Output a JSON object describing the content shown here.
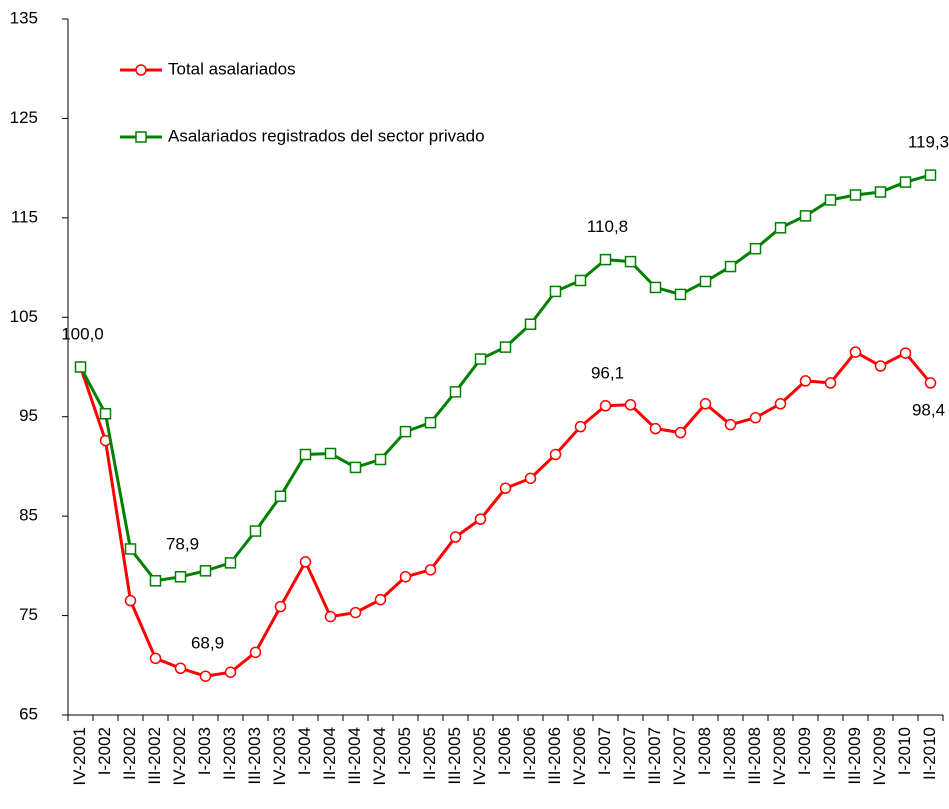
{
  "chart_data": {
    "type": "line",
    "categories": [
      "IV-2001",
      "I-2002",
      "II-2002",
      "III-2002",
      "IV-2002",
      "I-2003",
      "II-2003",
      "III-2003",
      "IV-2003",
      "I-2004",
      "II-2004",
      "III-2004",
      "IV-2004",
      "I-2005",
      "II-2005",
      "III-2005",
      "IV-2005",
      "I-2006",
      "II-2006",
      "III-2006",
      "IV-2006",
      "I-2007",
      "II-2007",
      "III-2007",
      "IV-2007",
      "I-2008",
      "II-2008",
      "III-2008",
      "IV-2008",
      "I-2009",
      "II-2009",
      "III-2009",
      "IV-2009",
      "I-2010",
      "II-2010"
    ],
    "series": [
      {
        "name": "Total asalariados",
        "color": "#ff0000",
        "values": [
          100,
          92.6,
          76.5,
          70.7,
          69.7,
          68.9,
          69.3,
          71.3,
          75.9,
          80.4,
          74.9,
          75.3,
          76.6,
          78.9,
          79.6,
          82.9,
          84.7,
          87.8,
          88.8,
          91.2,
          94.0,
          96.1,
          96.2,
          93.8,
          93.4,
          96.3,
          94.2,
          94.9,
          96.3,
          98.6,
          98.4,
          101.5,
          100.1,
          101.4,
          98.4
        ],
        "value_labels": [
          null,
          null,
          null,
          null,
          null,
          "68,9",
          null,
          null,
          null,
          null,
          null,
          null,
          null,
          null,
          null,
          null,
          null,
          null,
          null,
          null,
          null,
          "96,1",
          null,
          null,
          null,
          null,
          null,
          null,
          null,
          null,
          null,
          null,
          null,
          null,
          "98,4"
        ]
      },
      {
        "name": "Asalariados registrados del sector privado",
        "color": "#008000",
        "values": [
          100,
          95.3,
          81.7,
          78.5,
          78.9,
          79.5,
          80.3,
          83.5,
          87.0,
          91.2,
          91.3,
          89.9,
          90.7,
          93.5,
          94.4,
          97.5,
          100.8,
          102.0,
          104.3,
          107.6,
          108.7,
          110.8,
          110.6,
          108.0,
          107.3,
          108.6,
          110.1,
          111.9,
          114.0,
          115.2,
          116.8,
          117.3,
          117.6,
          118.6,
          119.3
        ],
        "value_labels": [
          "100,0",
          null,
          null,
          null,
          "78,9",
          null,
          null,
          null,
          null,
          null,
          null,
          null,
          null,
          null,
          null,
          null,
          null,
          null,
          null,
          null,
          null,
          "110,8",
          null,
          null,
          null,
          null,
          null,
          null,
          null,
          null,
          null,
          null,
          null,
          null,
          "119,3"
        ]
      }
    ],
    "ylim": [
      65,
      135
    ],
    "yticks": [
      65,
      75,
      85,
      95,
      105,
      115,
      125,
      135
    ],
    "grid": false,
    "legend": "top-left"
  }
}
